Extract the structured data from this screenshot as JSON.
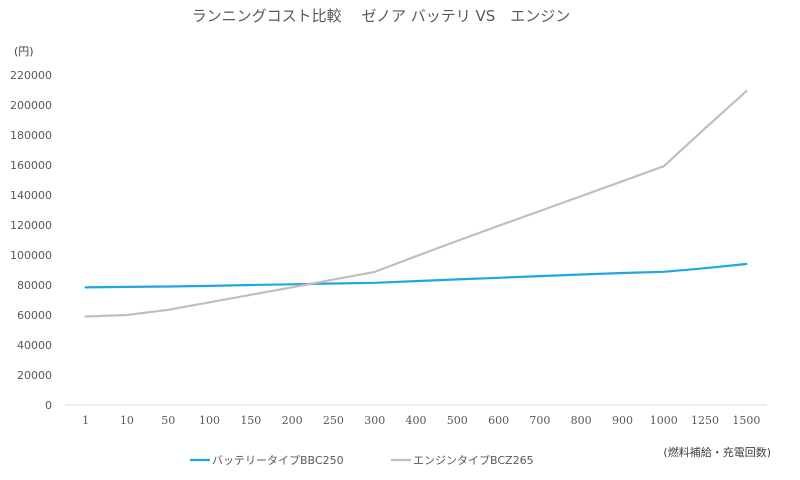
{
  "chart_data": {
    "type": "line",
    "title": "ランニングコスト比較　 ゼノア バッテリ VS　エンジン",
    "ylabel": "(円)",
    "xlabel": "(燃料補給・充電回数)",
    "categories": [
      "1",
      "10",
      "50",
      "100",
      "150",
      "200",
      "250",
      "300",
      "400",
      "500",
      "600",
      "700",
      "800",
      "900",
      "1000",
      "1250",
      "1500"
    ],
    "ylim": [
      0,
      220000
    ],
    "y_ticks": [
      0,
      20000,
      40000,
      60000,
      80000,
      100000,
      120000,
      140000,
      160000,
      180000,
      200000,
      220000
    ],
    "y_tick_labels": [
      "0",
      "20000",
      "40000",
      "60000",
      "80000",
      "100000",
      "120000",
      "140000",
      "160000",
      "180000",
      "200000",
      "220000"
    ],
    "grid": false,
    "legend_position": "bottom",
    "series": [
      {
        "name": "バッテリータイプBBC250",
        "color": "#1ea7e1",
        "values": [
          78400,
          78700,
          79000,
          79400,
          80000,
          80500,
          81000,
          81500,
          82600,
          83700,
          84800,
          85900,
          87000,
          88000,
          88800,
          91200,
          94000
        ]
      },
      {
        "name": "エンジンタイプBCZ265",
        "color": "#bfbfbf",
        "values": [
          59000,
          60000,
          63500,
          68500,
          73500,
          78500,
          83600,
          88700,
          99200,
          109400,
          119500,
          129300,
          139300,
          149200,
          159200,
          184500,
          209300
        ]
      }
    ]
  }
}
